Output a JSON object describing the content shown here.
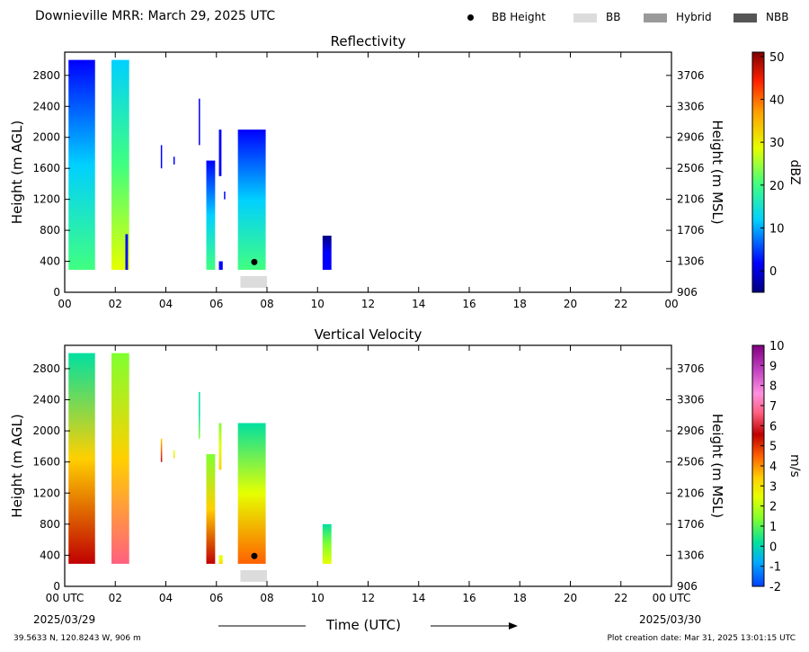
{
  "header": {
    "title": "Downieville MRR:  March 29, 2025 UTC",
    "legend": [
      {
        "label": "BB Height",
        "icon": "dot-icon",
        "color": "#000000"
      },
      {
        "label": "BB",
        "icon": "light-gray-swatch-icon",
        "color": "#dcdcdc"
      },
      {
        "label": "Hybrid",
        "icon": "gray-swatch-icon",
        "color": "#9a9a9a"
      },
      {
        "label": "NBB",
        "icon": "dark-gray-swatch-icon",
        "color": "#555555"
      }
    ]
  },
  "footer": {
    "location": "39.5633 N, 120.8243 W, 906 m",
    "creation": "Plot creation date: Mar 31, 2025 13:01:15 UTC",
    "start_date": "2025/03/29",
    "end_date": "2025/03/30",
    "xlabel": "Time (UTC)"
  },
  "chart_data": [
    {
      "type": "heatmap",
      "title": "Reflectivity",
      "ylabel": "Height (m AGL)",
      "ylabel_right": "Height (m MSL)",
      "colorbar_label": "dBZ",
      "x_ticks": [
        "00",
        "02",
        "04",
        "06",
        "08",
        "10",
        "12",
        "14",
        "16",
        "18",
        "20",
        "22",
        "00"
      ],
      "y_ticks": [
        0,
        400,
        800,
        1200,
        1600,
        2000,
        2400,
        2800
      ],
      "y_ticks_right": [
        906,
        1306,
        1706,
        2106,
        2506,
        2906,
        3306,
        3706
      ],
      "xlim": [
        0,
        24
      ],
      "ylim": [
        0,
        3100
      ],
      "colorbar_ticks": [
        0,
        10,
        20,
        30,
        40,
        50
      ],
      "colorbar_range": [
        -5,
        51
      ],
      "echo_columns": [
        {
          "t0": 0.15,
          "t1": 1.2,
          "h0": 290,
          "h1": 3000,
          "low": 2,
          "high": 22
        },
        {
          "t0": 1.85,
          "t1": 2.55,
          "h0": 290,
          "h1": 3000,
          "low": 8,
          "high": 26
        },
        {
          "t0": 2.4,
          "t1": 2.5,
          "h0": 290,
          "h1": 750,
          "low": 0,
          "high": 6
        },
        {
          "t0": 3.8,
          "t1": 3.85,
          "h0": 1600,
          "h1": 1900,
          "low": 0,
          "high": 4
        },
        {
          "t0": 4.3,
          "t1": 4.35,
          "h0": 1650,
          "h1": 1750,
          "low": 0,
          "high": 3
        },
        {
          "t0": 5.3,
          "t1": 5.35,
          "h0": 1900,
          "h1": 2500,
          "low": 1,
          "high": 6
        },
        {
          "t0": 5.6,
          "t1": 5.95,
          "h0": 290,
          "h1": 1700,
          "low": 2,
          "high": 18
        },
        {
          "t0": 6.1,
          "t1": 6.2,
          "h0": 1500,
          "h1": 2100,
          "low": 1,
          "high": 6
        },
        {
          "t0": 6.1,
          "t1": 6.25,
          "h0": 290,
          "h1": 400,
          "low": 0,
          "high": 5
        },
        {
          "t0": 6.3,
          "t1": 6.35,
          "h0": 1200,
          "h1": 1300,
          "low": 0,
          "high": 3
        },
        {
          "t0": 6.85,
          "t1": 7.95,
          "h0": 290,
          "h1": 2100,
          "low": 2,
          "high": 24
        },
        {
          "t0": 10.2,
          "t1": 10.55,
          "h0": 290,
          "h1": 730,
          "low": -2,
          "high": 4
        }
      ],
      "bright_band": {
        "time": 7.5,
        "height": 390
      },
      "bb_flag": {
        "t0": 6.95,
        "t1": 8.0,
        "type": "BB"
      }
    },
    {
      "type": "heatmap",
      "title": "Vertical Velocity",
      "ylabel": "Height (m AGL)",
      "ylabel_right": "Height (m MSL)",
      "colorbar_label": "m/s",
      "x_ticks": [
        "00 UTC",
        "02",
        "04",
        "06",
        "08",
        "10",
        "12",
        "14",
        "16",
        "18",
        "20",
        "22",
        "00 UTC"
      ],
      "y_ticks": [
        0,
        400,
        800,
        1200,
        1600,
        2000,
        2400,
        2800
      ],
      "y_ticks_right": [
        906,
        1306,
        1706,
        2106,
        2506,
        2906,
        3306,
        3706
      ],
      "xlim": [
        0,
        24
      ],
      "ylim": [
        0,
        3100
      ],
      "colorbar_ticks": [
        -2,
        -1,
        0,
        1,
        2,
        3,
        4,
        5,
        6,
        7,
        8,
        9,
        10
      ],
      "colorbar_range": [
        -2,
        10
      ],
      "echo_columns": [
        {
          "t0": 0.15,
          "t1": 1.2,
          "h0": 290,
          "h1": 3000,
          "low": 0.5,
          "high": 6
        },
        {
          "t0": 1.85,
          "t1": 2.55,
          "h0": 290,
          "h1": 3000,
          "low": 1,
          "high": 6.5
        },
        {
          "t0": 3.8,
          "t1": 3.85,
          "h0": 1600,
          "h1": 1900,
          "low": 3,
          "high": 6
        },
        {
          "t0": 4.3,
          "t1": 4.35,
          "h0": 1650,
          "h1": 1750,
          "low": 2,
          "high": 3
        },
        {
          "t0": 5.3,
          "t1": 5.35,
          "h0": 1900,
          "h1": 2500,
          "low": 0,
          "high": 1
        },
        {
          "t0": 5.6,
          "t1": 5.95,
          "h0": 290,
          "h1": 1700,
          "low": 1,
          "high": 5.5
        },
        {
          "t0": 6.1,
          "t1": 6.2,
          "h0": 1500,
          "h1": 2100,
          "low": 1,
          "high": 3
        },
        {
          "t0": 6.1,
          "t1": 6.25,
          "h0": 290,
          "h1": 400,
          "low": 2,
          "high": 3
        },
        {
          "t0": 6.85,
          "t1": 7.95,
          "h0": 290,
          "h1": 2100,
          "low": 0,
          "high": 4.5
        },
        {
          "t0": 10.2,
          "t1": 10.55,
          "h0": 290,
          "h1": 800,
          "low": 0,
          "high": 2
        }
      ],
      "bright_band": {
        "time": 7.5,
        "height": 390
      },
      "bb_flag": {
        "t0": 6.95,
        "t1": 8.0,
        "type": "BB"
      }
    }
  ]
}
